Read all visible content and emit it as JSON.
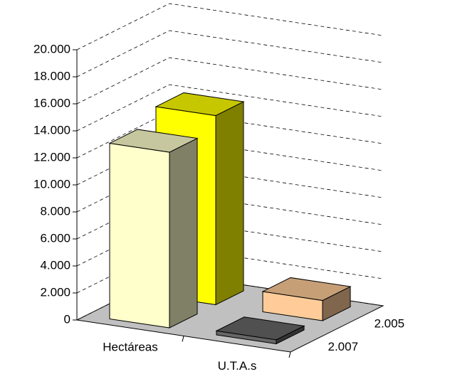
{
  "chart_data": {
    "type": "bar3d",
    "categories": [
      "Hectáreas",
      "U.T.A.s"
    ],
    "series": [
      {
        "name": "2.007",
        "colors": [
          "#FFFFCC",
          "#666666"
        ],
        "values": [
          13000,
          300
        ]
      },
      {
        "name": "2.005",
        "colors": [
          "#FFFF00",
          "#FFCC99"
        ],
        "values": [
          14000,
          1500
        ]
      }
    ],
    "ylim": [
      0,
      20000
    ],
    "yticks": [
      0,
      {
        "value": 2000,
        "label": "2.000"
      },
      {
        "value": 4000,
        "label": "4.000"
      },
      {
        "value": 6000,
        "label": "6.000"
      },
      {
        "value": 8000,
        "label": "8.000"
      },
      {
        "value": 10000,
        "label": "10.000"
      },
      {
        "value": 12000,
        "label": "12.000"
      },
      {
        "value": 14000,
        "label": "14.000"
      },
      {
        "value": 16000,
        "label": "16.000"
      },
      {
        "value": 18000,
        "label": "18.000"
      },
      {
        "value": 20000,
        "label": "20.000"
      }
    ],
    "grid": true
  }
}
